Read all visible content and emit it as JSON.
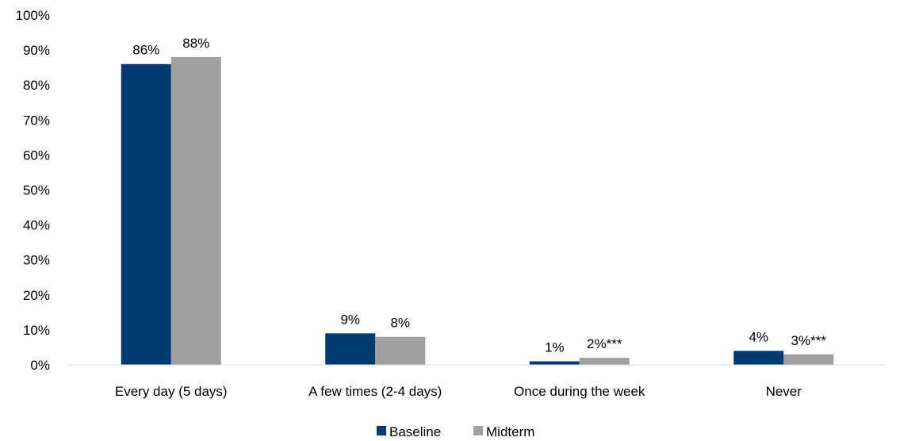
{
  "chart_data": {
    "type": "bar",
    "categories": [
      "Every day (5 days)",
      "A few times (2-4 days)",
      "Once during the week",
      "Never"
    ],
    "series": [
      {
        "name": "Baseline",
        "color": "#003A70",
        "values": [
          86,
          9,
          1,
          4
        ],
        "labels": [
          "86%",
          "9%",
          "1%",
          "4%"
        ]
      },
      {
        "name": "Midterm",
        "color": "#A0A0A0",
        "values": [
          88,
          8,
          2,
          3
        ],
        "labels": [
          "88%",
          "8%",
          "2%***",
          "3%***"
        ]
      }
    ],
    "y_ticks": [
      "0%",
      "10%",
      "20%",
      "30%",
      "40%",
      "50%",
      "60%",
      "70%",
      "80%",
      "90%",
      "100%"
    ],
    "ylim": [
      0,
      100
    ],
    "grid": false,
    "legend_position": "bottom"
  }
}
